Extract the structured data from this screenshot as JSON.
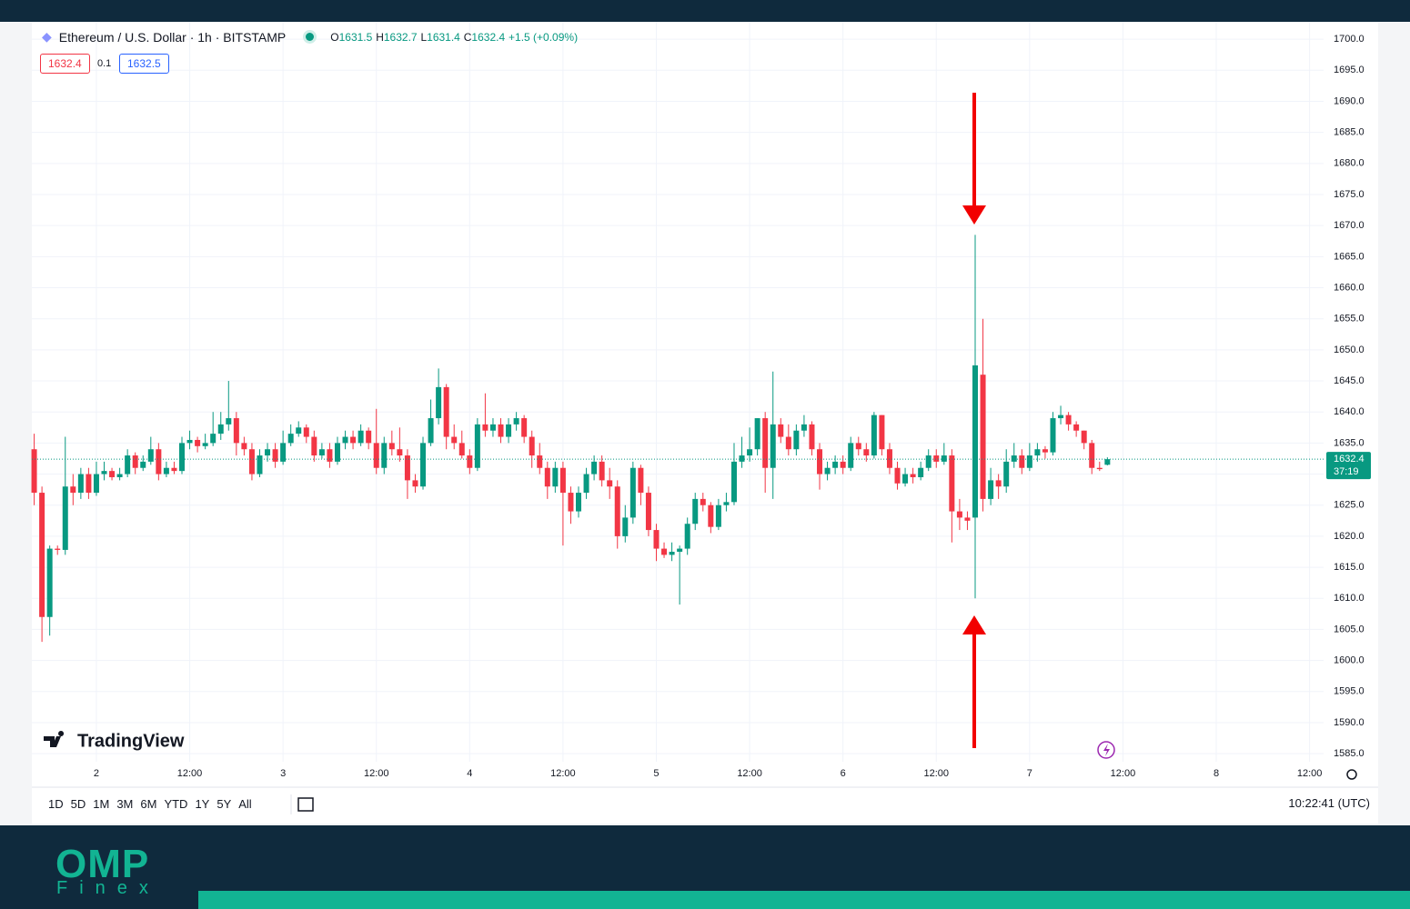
{
  "header": {
    "symbol": "Ethereum / U.S. Dollar · 1h · BITSTAMP",
    "ohlc_letters": [
      "O",
      "H",
      "L",
      "C"
    ],
    "change": "+1.5 (+0.09%)",
    "bid": 1632.4,
    "spread": 0.1,
    "ask": 1632.5
  },
  "chart_data": {
    "type": "candlestick",
    "up_color": "#089981",
    "down_color": "#f23645",
    "grid": true,
    "countdown": "37:19",
    "x": [
      0,
      1,
      2,
      3,
      4,
      5,
      6,
      7,
      8,
      9,
      10,
      11,
      12,
      13,
      14,
      15,
      16,
      17,
      18,
      19,
      20,
      21,
      22,
      23,
      24,
      25,
      26,
      27,
      28,
      29,
      30,
      31,
      32,
      33,
      34,
      35,
      36,
      37,
      38,
      39,
      40,
      41,
      42,
      43,
      44,
      45,
      46,
      47,
      48,
      49,
      50,
      51,
      52,
      53,
      54,
      55,
      56,
      57,
      58,
      59,
      60,
      61,
      62,
      63,
      64,
      65,
      66,
      67,
      68,
      69,
      70,
      71,
      72,
      73,
      74,
      75,
      76,
      77,
      78,
      79,
      80,
      81,
      82,
      83,
      84,
      85,
      86,
      87,
      88,
      89,
      90,
      91,
      92,
      93,
      94,
      95,
      96,
      97,
      98,
      99,
      100,
      101,
      102,
      103,
      104,
      105,
      106,
      107,
      108,
      109,
      110,
      111,
      112,
      113,
      114,
      115,
      116,
      117,
      118,
      119,
      120,
      121,
      122,
      123,
      124,
      125,
      126,
      127,
      128,
      129,
      130,
      131,
      132,
      133,
      134,
      135,
      136,
      137,
      138
    ],
    "candles": [
      [
        1634,
        1636.5,
        1625,
        1627
      ],
      [
        1627,
        1628,
        1603,
        1607
      ],
      [
        1607,
        1618.5,
        1604,
        1618
      ],
      [
        1618,
        1618.5,
        1617,
        1617.8
      ],
      [
        1617.8,
        1636,
        1617,
        1628
      ],
      [
        1628,
        1630,
        1625,
        1627
      ],
      [
        1627,
        1631,
        1626,
        1630
      ],
      [
        1630,
        1631,
        1626,
        1627
      ],
      [
        1627,
        1632,
        1626.5,
        1630
      ],
      [
        1630,
        1632,
        1629,
        1630.5
      ],
      [
        1630.5,
        1631,
        1629,
        1629.5
      ],
      [
        1629.5,
        1631,
        1629,
        1630
      ],
      [
        1630,
        1634,
        1629.5,
        1633
      ],
      [
        1633,
        1633.5,
        1630,
        1631
      ],
      [
        1631,
        1633,
        1630.5,
        1632
      ],
      [
        1632,
        1636,
        1631.5,
        1634
      ],
      [
        1634,
        1635,
        1629,
        1630
      ],
      [
        1630,
        1632,
        1629.5,
        1631
      ],
      [
        1631,
        1632,
        1630,
        1630.5
      ],
      [
        1630.5,
        1636,
        1630,
        1635
      ],
      [
        1635,
        1637,
        1634,
        1635.5
      ],
      [
        1635.5,
        1636,
        1633.5,
        1634.5
      ],
      [
        1634.5,
        1636.5,
        1634,
        1635
      ],
      [
        1635,
        1640,
        1634.5,
        1636.5
      ],
      [
        1636.5,
        1640,
        1635.5,
        1638
      ],
      [
        1638,
        1645,
        1637,
        1639
      ],
      [
        1639,
        1640,
        1633,
        1635
      ],
      [
        1635,
        1636,
        1633,
        1634
      ],
      [
        1634,
        1635,
        1629,
        1630
      ],
      [
        1630,
        1634,
        1629.5,
        1633
      ],
      [
        1633,
        1635,
        1632,
        1634
      ],
      [
        1634,
        1635,
        1631,
        1632
      ],
      [
        1632,
        1637,
        1631.5,
        1635
      ],
      [
        1635,
        1638,
        1634.5,
        1636.5
      ],
      [
        1636.5,
        1638.5,
        1636,
        1637.5
      ],
      [
        1637.5,
        1638,
        1635,
        1636
      ],
      [
        1636,
        1637,
        1632,
        1633
      ],
      [
        1633,
        1635,
        1632.5,
        1634
      ],
      [
        1634,
        1635,
        1631,
        1632
      ],
      [
        1632,
        1636,
        1631.5,
        1635
      ],
      [
        1635,
        1637,
        1634,
        1636
      ],
      [
        1636,
        1637,
        1634,
        1635
      ],
      [
        1635,
        1638,
        1634.5,
        1637
      ],
      [
        1637,
        1637.5,
        1634,
        1635
      ],
      [
        1635,
        1640.5,
        1630,
        1631
      ],
      [
        1631,
        1636,
        1630,
        1635
      ],
      [
        1635,
        1637,
        1633,
        1634
      ],
      [
        1634,
        1637.5,
        1632,
        1633
      ],
      [
        1633,
        1634,
        1626,
        1629
      ],
      [
        1629,
        1630,
        1627,
        1628
      ],
      [
        1628,
        1636,
        1627.5,
        1635
      ],
      [
        1635,
        1642,
        1634.5,
        1639
      ],
      [
        1639,
        1647,
        1638,
        1644
      ],
      [
        1644,
        1644.5,
        1634,
        1636
      ],
      [
        1636,
        1638,
        1634,
        1635
      ],
      [
        1635,
        1637,
        1632.5,
        1633
      ],
      [
        1633,
        1634,
        1630,
        1631
      ],
      [
        1631,
        1639,
        1630.5,
        1638
      ],
      [
        1638,
        1643,
        1636,
        1637
      ],
      [
        1637,
        1639,
        1636,
        1638
      ],
      [
        1638,
        1639,
        1635,
        1636
      ],
      [
        1636,
        1639,
        1635,
        1638
      ],
      [
        1638,
        1640,
        1637,
        1639
      ],
      [
        1639,
        1639.5,
        1635,
        1636
      ],
      [
        1636,
        1637,
        1631,
        1633
      ],
      [
        1633,
        1635,
        1630,
        1631
      ],
      [
        1631,
        1632,
        1626,
        1628
      ],
      [
        1628,
        1632,
        1627,
        1631
      ],
      [
        1631,
        1632,
        1618.5,
        1627
      ],
      [
        1627,
        1628,
        1622,
        1624
      ],
      [
        1624,
        1628,
        1623,
        1627
      ],
      [
        1627,
        1631,
        1626,
        1630
      ],
      [
        1630,
        1633,
        1629,
        1632
      ],
      [
        1632,
        1633,
        1628,
        1629
      ],
      [
        1629,
        1631,
        1626,
        1628
      ],
      [
        1628,
        1629,
        1618,
        1620
      ],
      [
        1620,
        1625,
        1619,
        1623
      ],
      [
        1623,
        1632,
        1622,
        1631
      ],
      [
        1631,
        1631.5,
        1625,
        1627
      ],
      [
        1627,
        1628,
        1620,
        1621
      ],
      [
        1621,
        1622,
        1616,
        1618
      ],
      [
        1618,
        1619,
        1616.5,
        1617
      ],
      [
        1617,
        1619,
        1616,
        1617.5
      ],
      [
        1617.5,
        1618.5,
        1609,
        1618
      ],
      [
        1618,
        1623,
        1617,
        1622
      ],
      [
        1622,
        1627,
        1621,
        1626
      ],
      [
        1626,
        1627,
        1624,
        1625
      ],
      [
        1625,
        1625.5,
        1620.5,
        1621.5
      ],
      [
        1621.5,
        1626,
        1621,
        1625
      ],
      [
        1625,
        1627,
        1624,
        1625.5
      ],
      [
        1625.5,
        1635,
        1625,
        1632
      ],
      [
        1632,
        1636,
        1631,
        1633
      ],
      [
        1633,
        1637.5,
        1632,
        1634
      ],
      [
        1634,
        1639,
        1633,
        1639
      ],
      [
        1639,
        1640,
        1627,
        1631
      ],
      [
        1631,
        1646.5,
        1626,
        1638
      ],
      [
        1638,
        1639,
        1635,
        1636
      ],
      [
        1636,
        1638,
        1633,
        1634
      ],
      [
        1634,
        1638,
        1633,
        1637
      ],
      [
        1637,
        1639.5,
        1636,
        1638
      ],
      [
        1638,
        1638.5,
        1633,
        1634
      ],
      [
        1634,
        1635,
        1627.5,
        1630
      ],
      [
        1630,
        1632,
        1629,
        1631
      ],
      [
        1631,
        1633,
        1630,
        1632
      ],
      [
        1632,
        1633,
        1630,
        1631
      ],
      [
        1631,
        1636,
        1630.5,
        1635
      ],
      [
        1635,
        1636,
        1633,
        1634
      ],
      [
        1634,
        1635,
        1632,
        1633
      ],
      [
        1633,
        1640,
        1632.5,
        1639.5
      ],
      [
        1639.5,
        1639.5,
        1633,
        1634
      ],
      [
        1634,
        1635,
        1630,
        1631
      ],
      [
        1631,
        1632,
        1627.5,
        1628.5
      ],
      [
        1628.5,
        1631,
        1628,
        1630
      ],
      [
        1630,
        1631,
        1628.5,
        1629.5
      ],
      [
        1629.5,
        1632,
        1629,
        1631
      ],
      [
        1631,
        1634,
        1630.5,
        1633
      ],
      [
        1633,
        1634,
        1631,
        1632
      ],
      [
        1632,
        1635,
        1631.5,
        1633
      ],
      [
        1633,
        1634,
        1619,
        1624
      ],
      [
        1624,
        1626,
        1621,
        1623
      ],
      [
        1623,
        1624,
        1621,
        1622.5
      ],
      [
        1623,
        1668.5,
        1610,
        1647.5
      ],
      [
        1646,
        1655,
        1624,
        1626
      ],
      [
        1626,
        1631,
        1625,
        1629
      ],
      [
        1629,
        1630,
        1626,
        1628
      ],
      [
        1628,
        1634,
        1627,
        1632
      ],
      [
        1632,
        1635,
        1631,
        1633
      ],
      [
        1633,
        1634,
        1630,
        1631
      ],
      [
        1631,
        1635,
        1630.5,
        1633
      ],
      [
        1633,
        1635,
        1632,
        1634
      ],
      [
        1634,
        1634.5,
        1632.5,
        1633.5
      ],
      [
        1633.5,
        1640,
        1633,
        1639
      ],
      [
        1639,
        1641,
        1638,
        1639.5
      ],
      [
        1639.5,
        1640,
        1637,
        1638
      ],
      [
        1638,
        1638.5,
        1636,
        1637
      ],
      [
        1637,
        1637,
        1634,
        1635
      ],
      [
        1635,
        1635.5,
        1630,
        1631
      ],
      [
        1631,
        1632,
        1630.5,
        1630.8
      ],
      [
        1631.5,
        1632.7,
        1631.4,
        1632.4
      ]
    ],
    "xlim": [
      -0.3,
      165.8
    ],
    "xticks": [
      {
        "value": 8,
        "label": "2"
      },
      {
        "value": 20,
        "label": "12:00"
      },
      {
        "value": 32,
        "label": "3"
      },
      {
        "value": 44,
        "label": "12:00"
      },
      {
        "value": 56,
        "label": "4"
      },
      {
        "value": 68,
        "label": "12:00"
      },
      {
        "value": 80,
        "label": "5"
      },
      {
        "value": 92,
        "label": "12:00"
      },
      {
        "value": 104,
        "label": "6"
      },
      {
        "value": 116,
        "label": "12:00"
      },
      {
        "value": 128,
        "label": "7"
      },
      {
        "value": 140,
        "label": "12:00"
      },
      {
        "value": 152,
        "label": "8"
      },
      {
        "value": 164,
        "label": "12:00"
      }
    ],
    "ylim": [
      1583.7,
      1702.8
    ],
    "yticks": [
      {
        "value": 1585,
        "label": "1585.0"
      },
      {
        "value": 1590,
        "label": "1590.0"
      },
      {
        "value": 1595,
        "label": "1595.0"
      },
      {
        "value": 1600,
        "label": "1600.0"
      },
      {
        "value": 1605,
        "label": "1605.0"
      },
      {
        "value": 1610,
        "label": "1610.0"
      },
      {
        "value": 1615,
        "label": "1615.0"
      },
      {
        "value": 1620,
        "label": "1620.0"
      },
      {
        "value": 1625,
        "label": "1625.0"
      },
      {
        "value": 1630,
        "label": "1630.0"
      },
      {
        "value": 1635,
        "label": "1635.0"
      },
      {
        "value": 1640,
        "label": "1640.0"
      },
      {
        "value": 1645,
        "label": "1645.0"
      },
      {
        "value": 1650,
        "label": "1650.0"
      },
      {
        "value": 1655,
        "label": "1655.0"
      },
      {
        "value": 1660,
        "label": "1660.0"
      },
      {
        "value": 1665,
        "label": "1665.0"
      },
      {
        "value": 1670,
        "label": "1670.0"
      },
      {
        "value": 1675,
        "label": "1675.0"
      },
      {
        "value": 1680,
        "label": "1680.0"
      },
      {
        "value": 1685,
        "label": "1685.0"
      },
      {
        "value": 1690,
        "label": "1690.0"
      },
      {
        "value": 1695,
        "label": "1695.0"
      },
      {
        "value": 1700,
        "label": "1700.0"
      }
    ]
  },
  "toolbar": {
    "ranges": [
      "1D",
      "5D",
      "1M",
      "3M",
      "6M",
      "YTD",
      "1Y",
      "5Y",
      "All"
    ],
    "clock": "10:22:41 (UTC)"
  },
  "branding": {
    "chart_logo": "TradingView",
    "footer_logo": "OMP",
    "footer_sub": "Finex"
  }
}
